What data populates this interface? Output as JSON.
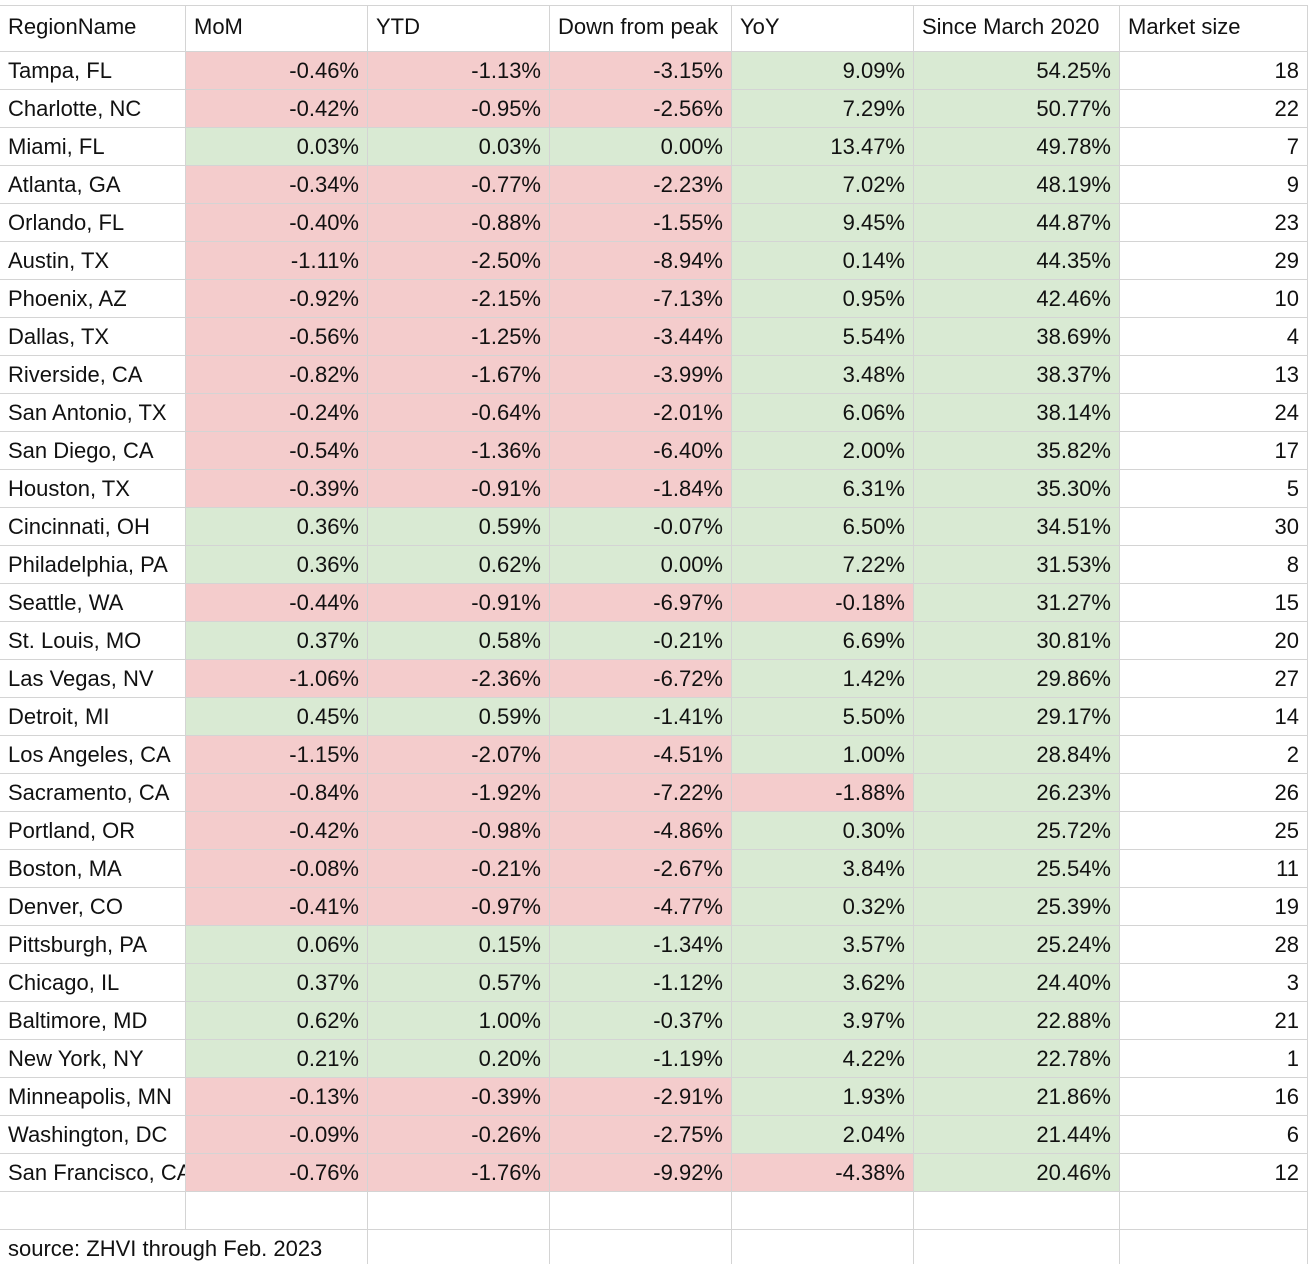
{
  "table": {
    "header": [
      "RegionName",
      "MoM",
      "YTD",
      "Down from peak",
      "YoY",
      "Since March 2020",
      "Market size"
    ],
    "rows": [
      {
        "cells": [
          "Tampa, FL",
          "-0.46%",
          "-1.13%",
          "-3.15%",
          "9.09%",
          "54.25%",
          "18"
        ],
        "fills": [
          "#f4cccc",
          "#f4cccc",
          "#f4cccc",
          "#d9ead3",
          "#d9ead3"
        ]
      },
      {
        "cells": [
          "Charlotte, NC",
          "-0.42%",
          "-0.95%",
          "-2.56%",
          "7.29%",
          "50.77%",
          "22"
        ],
        "fills": [
          "#f4cccc",
          "#f4cccc",
          "#f4cccc",
          "#d9ead3",
          "#d9ead3"
        ]
      },
      {
        "cells": [
          "Miami, FL",
          "0.03%",
          "0.03%",
          "0.00%",
          "13.47%",
          "49.78%",
          "7"
        ],
        "fills": [
          "#d9ead3",
          "#d9ead3",
          "#d9ead3",
          "#d9ead3",
          "#d9ead3"
        ]
      },
      {
        "cells": [
          "Atlanta, GA",
          "-0.34%",
          "-0.77%",
          "-2.23%",
          "7.02%",
          "48.19%",
          "9"
        ],
        "fills": [
          "#f4cccc",
          "#f4cccc",
          "#f4cccc",
          "#d9ead3",
          "#d9ead3"
        ]
      },
      {
        "cells": [
          "Orlando, FL",
          "-0.40%",
          "-0.88%",
          "-1.55%",
          "9.45%",
          "44.87%",
          "23"
        ],
        "fills": [
          "#f4cccc",
          "#f4cccc",
          "#f4cccc",
          "#d9ead3",
          "#d9ead3"
        ]
      },
      {
        "cells": [
          "Austin, TX",
          "-1.11%",
          "-2.50%",
          "-8.94%",
          "0.14%",
          "44.35%",
          "29"
        ],
        "fills": [
          "#f4cccc",
          "#f4cccc",
          "#f4cccc",
          "#d9ead3",
          "#d9ead3"
        ]
      },
      {
        "cells": [
          "Phoenix, AZ",
          "-0.92%",
          "-2.15%",
          "-7.13%",
          "0.95%",
          "42.46%",
          "10"
        ],
        "fills": [
          "#f4cccc",
          "#f4cccc",
          "#f4cccc",
          "#d9ead3",
          "#d9ead3"
        ]
      },
      {
        "cells": [
          "Dallas, TX",
          "-0.56%",
          "-1.25%",
          "-3.44%",
          "5.54%",
          "38.69%",
          "4"
        ],
        "fills": [
          "#f4cccc",
          "#f4cccc",
          "#f4cccc",
          "#d9ead3",
          "#d9ead3"
        ]
      },
      {
        "cells": [
          "Riverside, CA",
          "-0.82%",
          "-1.67%",
          "-3.99%",
          "3.48%",
          "38.37%",
          "13"
        ],
        "fills": [
          "#f4cccc",
          "#f4cccc",
          "#f4cccc",
          "#d9ead3",
          "#d9ead3"
        ]
      },
      {
        "cells": [
          "San Antonio, TX",
          "-0.24%",
          "-0.64%",
          "-2.01%",
          "6.06%",
          "38.14%",
          "24"
        ],
        "fills": [
          "#f4cccc",
          "#f4cccc",
          "#f4cccc",
          "#d9ead3",
          "#d9ead3"
        ]
      },
      {
        "cells": [
          "San Diego, CA",
          "-0.54%",
          "-1.36%",
          "-6.40%",
          "2.00%",
          "35.82%",
          "17"
        ],
        "fills": [
          "#f4cccc",
          "#f4cccc",
          "#f4cccc",
          "#d9ead3",
          "#d9ead3"
        ]
      },
      {
        "cells": [
          "Houston, TX",
          "-0.39%",
          "-0.91%",
          "-1.84%",
          "6.31%",
          "35.30%",
          "5"
        ],
        "fills": [
          "#f4cccc",
          "#f4cccc",
          "#f4cccc",
          "#d9ead3",
          "#d9ead3"
        ]
      },
      {
        "cells": [
          "Cincinnati, OH",
          "0.36%",
          "0.59%",
          "-0.07%",
          "6.50%",
          "34.51%",
          "30"
        ],
        "fills": [
          "#d9ead3",
          "#d9ead3",
          "#d9ead3",
          "#d9ead3",
          "#d9ead3"
        ]
      },
      {
        "cells": [
          "Philadelphia, PA",
          "0.36%",
          "0.62%",
          "0.00%",
          "7.22%",
          "31.53%",
          "8"
        ],
        "fills": [
          "#d9ead3",
          "#d9ead3",
          "#d9ead3",
          "#d9ead3",
          "#d9ead3"
        ]
      },
      {
        "cells": [
          "Seattle, WA",
          "-0.44%",
          "-0.91%",
          "-6.97%",
          "-0.18%",
          "31.27%",
          "15"
        ],
        "fills": [
          "#f4cccc",
          "#f4cccc",
          "#f4cccc",
          "#f4cccc",
          "#d9ead3"
        ]
      },
      {
        "cells": [
          "St. Louis, MO",
          "0.37%",
          "0.58%",
          "-0.21%",
          "6.69%",
          "30.81%",
          "20"
        ],
        "fills": [
          "#d9ead3",
          "#d9ead3",
          "#d9ead3",
          "#d9ead3",
          "#d9ead3"
        ]
      },
      {
        "cells": [
          "Las Vegas, NV",
          "-1.06%",
          "-2.36%",
          "-6.72%",
          "1.42%",
          "29.86%",
          "27"
        ],
        "fills": [
          "#f4cccc",
          "#f4cccc",
          "#f4cccc",
          "#d9ead3",
          "#d9ead3"
        ]
      },
      {
        "cells": [
          "Detroit, MI",
          "0.45%",
          "0.59%",
          "-1.41%",
          "5.50%",
          "29.17%",
          "14"
        ],
        "fills": [
          "#d9ead3",
          "#d9ead3",
          "#d9ead3",
          "#d9ead3",
          "#d9ead3"
        ]
      },
      {
        "cells": [
          "Los Angeles, CA",
          "-1.15%",
          "-2.07%",
          "-4.51%",
          "1.00%",
          "28.84%",
          "2"
        ],
        "fills": [
          "#f4cccc",
          "#f4cccc",
          "#f4cccc",
          "#d9ead3",
          "#d9ead3"
        ]
      },
      {
        "cells": [
          "Sacramento, CA",
          "-0.84%",
          "-1.92%",
          "-7.22%",
          "-1.88%",
          "26.23%",
          "26"
        ],
        "fills": [
          "#f4cccc",
          "#f4cccc",
          "#f4cccc",
          "#f4cccc",
          "#d9ead3"
        ]
      },
      {
        "cells": [
          "Portland, OR",
          "-0.42%",
          "-0.98%",
          "-4.86%",
          "0.30%",
          "25.72%",
          "25"
        ],
        "fills": [
          "#f4cccc",
          "#f4cccc",
          "#f4cccc",
          "#d9ead3",
          "#d9ead3"
        ]
      },
      {
        "cells": [
          "Boston, MA",
          "-0.08%",
          "-0.21%",
          "-2.67%",
          "3.84%",
          "25.54%",
          "11"
        ],
        "fills": [
          "#f4cccc",
          "#f4cccc",
          "#f4cccc",
          "#d9ead3",
          "#d9ead3"
        ]
      },
      {
        "cells": [
          "Denver, CO",
          "-0.41%",
          "-0.97%",
          "-4.77%",
          "0.32%",
          "25.39%",
          "19"
        ],
        "fills": [
          "#f4cccc",
          "#f4cccc",
          "#f4cccc",
          "#d9ead3",
          "#d9ead3"
        ]
      },
      {
        "cells": [
          "Pittsburgh, PA",
          "0.06%",
          "0.15%",
          "-1.34%",
          "3.57%",
          "25.24%",
          "28"
        ],
        "fills": [
          "#d9ead3",
          "#d9ead3",
          "#d9ead3",
          "#d9ead3",
          "#d9ead3"
        ]
      },
      {
        "cells": [
          "Chicago, IL",
          "0.37%",
          "0.57%",
          "-1.12%",
          "3.62%",
          "24.40%",
          "3"
        ],
        "fills": [
          "#d9ead3",
          "#d9ead3",
          "#d9ead3",
          "#d9ead3",
          "#d9ead3"
        ]
      },
      {
        "cells": [
          "Baltimore, MD",
          "0.62%",
          "1.00%",
          "-0.37%",
          "3.97%",
          "22.88%",
          "21"
        ],
        "fills": [
          "#d9ead3",
          "#d9ead3",
          "#d9ead3",
          "#d9ead3",
          "#d9ead3"
        ]
      },
      {
        "cells": [
          "New York, NY",
          "0.21%",
          "0.20%",
          "-1.19%",
          "4.22%",
          "22.78%",
          "1"
        ],
        "fills": [
          "#d9ead3",
          "#d9ead3",
          "#d9ead3",
          "#d9ead3",
          "#d9ead3"
        ]
      },
      {
        "cells": [
          "Minneapolis, MN",
          "-0.13%",
          "-0.39%",
          "-2.91%",
          "1.93%",
          "21.86%",
          "16"
        ],
        "fills": [
          "#f4cccc",
          "#f4cccc",
          "#f4cccc",
          "#d9ead3",
          "#d9ead3"
        ]
      },
      {
        "cells": [
          "Washington, DC",
          "-0.09%",
          "-0.26%",
          "-2.75%",
          "2.04%",
          "21.44%",
          "6"
        ],
        "fills": [
          "#f4cccc",
          "#f4cccc",
          "#f4cccc",
          "#d9ead3",
          "#d9ead3"
        ]
      },
      {
        "cells": [
          "San Francisco, CA",
          "-0.76%",
          "-1.76%",
          "-9.92%",
          "-4.38%",
          "20.46%",
          "12"
        ],
        "fills": [
          "#f4cccc",
          "#f4cccc",
          "#f4cccc",
          "#f4cccc",
          "#d9ead3"
        ]
      }
    ],
    "source": "source: ZHVI through Feb. 2023"
  }
}
